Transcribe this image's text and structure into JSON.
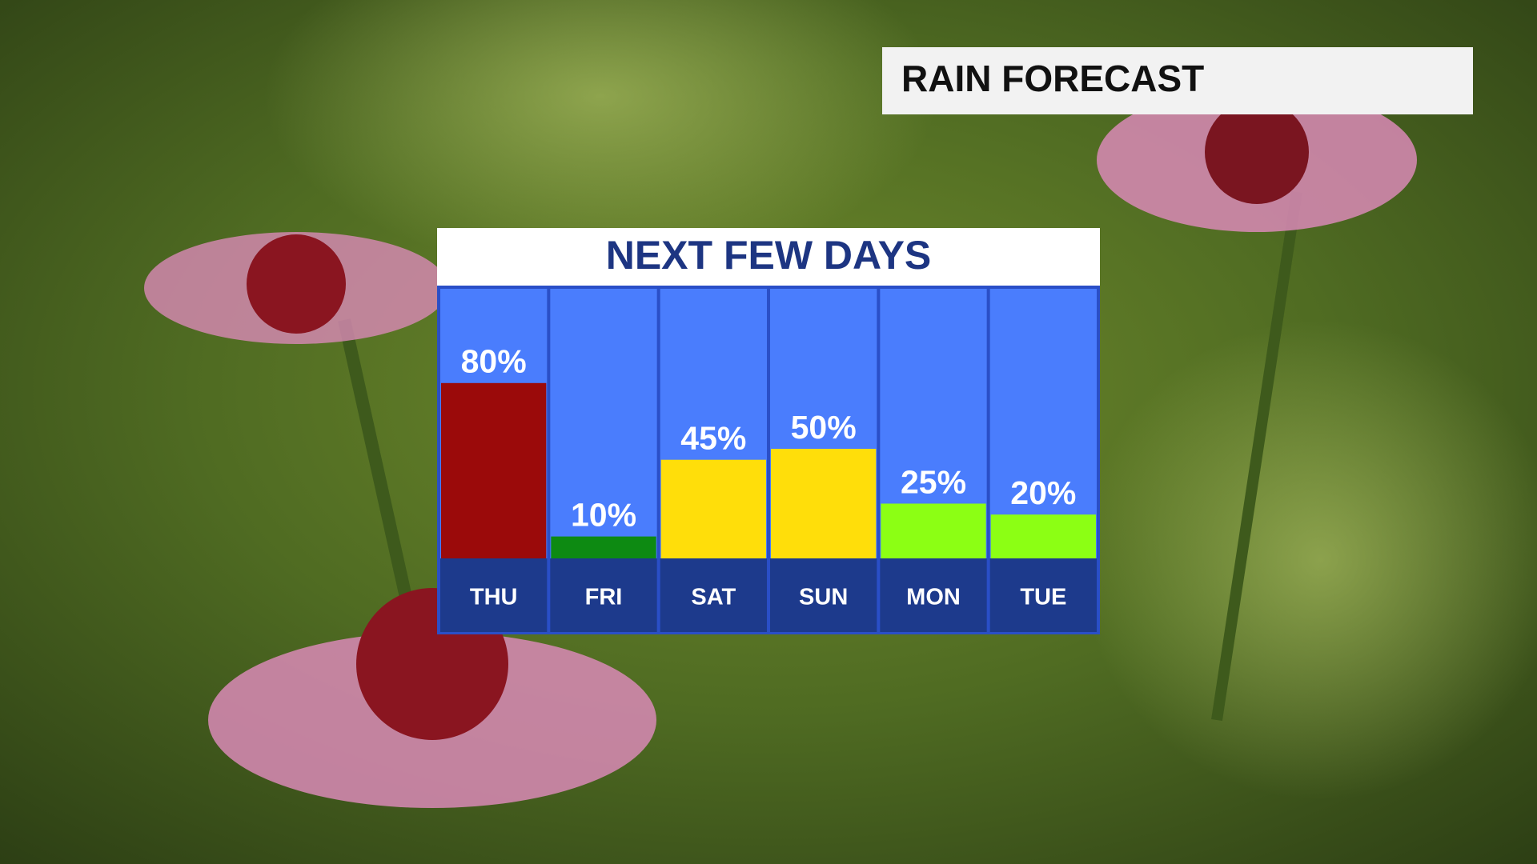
{
  "header": {
    "title": "RAIN FORECAST"
  },
  "chart_data": {
    "type": "bar",
    "title": "NEXT FEW DAYS",
    "categories": [
      "THU",
      "FRI",
      "SAT",
      "SUN",
      "MON",
      "TUE"
    ],
    "values": [
      80,
      10,
      45,
      50,
      25,
      20
    ],
    "value_labels": [
      "80%",
      "10%",
      "45%",
      "50%",
      "25%",
      "20%"
    ],
    "colors": [
      "#9b0a0a",
      "#0d8a12",
      "#ffde0a",
      "#ffde0a",
      "#8cff14",
      "#8cff14"
    ]
  }
}
